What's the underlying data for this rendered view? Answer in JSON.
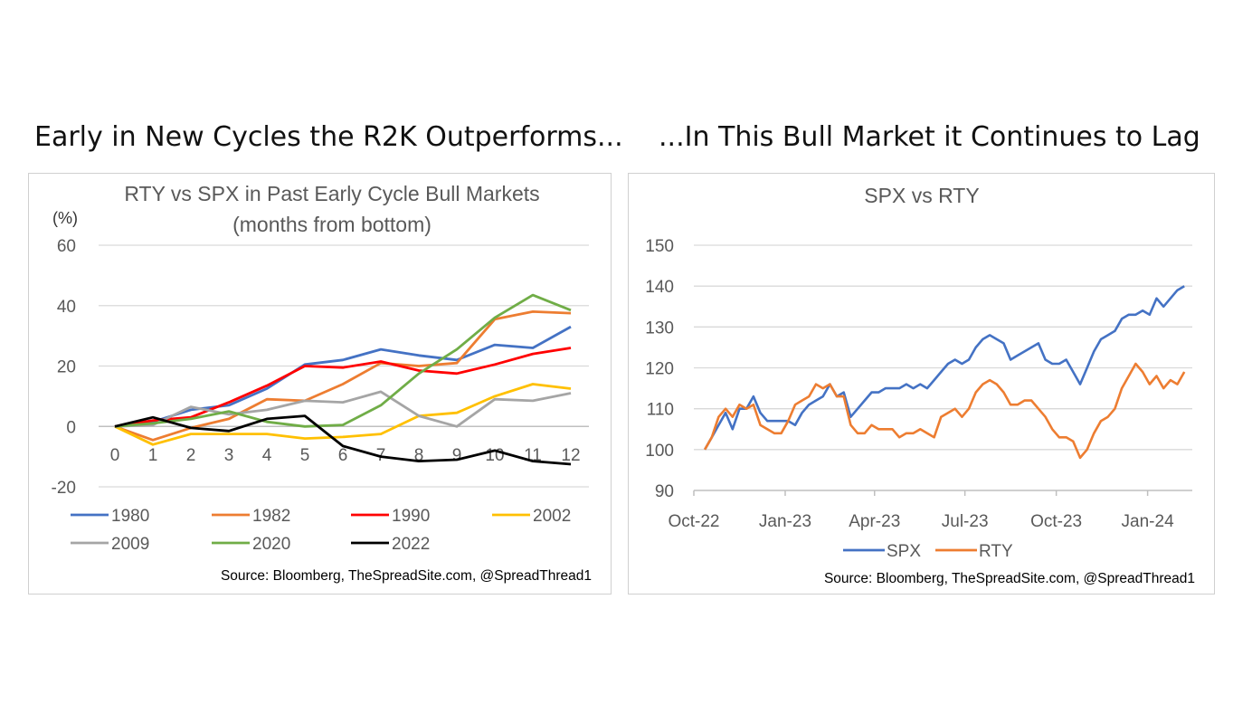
{
  "headings": {
    "left": "Early in New Cycles the R2K Outperforms...",
    "right": "...In This Bull Market it Continues to Lag"
  },
  "chart_data": [
    {
      "type": "line",
      "title": "RTY vs SPX in Past Early Cycle Bull Markets",
      "subtitle": "(months from bottom)",
      "ylabel": "(%)",
      "xlabel": "",
      "x": [
        0,
        1,
        2,
        3,
        4,
        5,
        6,
        7,
        8,
        9,
        10,
        11,
        12
      ],
      "ylim": [
        -20,
        60
      ],
      "yticks": [
        -20,
        0,
        20,
        40,
        60
      ],
      "grid": true,
      "legend_position": "bottom",
      "source": "Source: Bloomberg, TheSpreadSite.com, @SpreadThread1",
      "series": [
        {
          "name": "1980",
          "color": "#4472C4",
          "values": [
            0,
            1.5,
            5.5,
            7,
            12.5,
            20.5,
            22,
            25.5,
            23.5,
            22,
            27,
            26,
            33
          ]
        },
        {
          "name": "1982",
          "color": "#ED7D31",
          "values": [
            0,
            -4.5,
            -0.5,
            2.5,
            9,
            8.5,
            14,
            21,
            20,
            21,
            35.5,
            38,
            37.5
          ]
        },
        {
          "name": "1990",
          "color": "#FF0000",
          "values": [
            0,
            2,
            3,
            8,
            13.5,
            20,
            19.5,
            21.5,
            18.5,
            17.5,
            20.5,
            24,
            26
          ]
        },
        {
          "name": "2002",
          "color": "#FFC000",
          "values": [
            0,
            -6,
            -2.5,
            -2.5,
            -2.5,
            -4,
            -3.5,
            -2.5,
            3.5,
            4.5,
            10,
            14,
            12.5
          ]
        },
        {
          "name": "2009",
          "color": "#A5A5A5",
          "values": [
            0,
            0.5,
            6.5,
            4,
            5.5,
            8.5,
            8,
            11.5,
            3.5,
            0,
            9,
            8.5,
            11
          ]
        },
        {
          "name": "2020",
          "color": "#70AD47",
          "values": [
            0,
            1,
            2.5,
            5,
            1.5,
            0,
            0.5,
            7,
            17.5,
            25.5,
            36,
            43.5,
            38.5
          ]
        },
        {
          "name": "2022",
          "color": "#000000",
          "values": [
            0,
            3,
            -0.5,
            -1.5,
            2.5,
            3.5,
            -6.5,
            -10,
            -11.5,
            -11,
            -8,
            -11.5,
            -12.5
          ]
        }
      ]
    },
    {
      "type": "line",
      "title": "SPX vs RTY",
      "xlabel": "",
      "ylabel": "",
      "ylim": [
        90,
        150
      ],
      "yticks": [
        90,
        100,
        110,
        120,
        130,
        140,
        150
      ],
      "xlim": [
        "2022-10-12",
        "2024-02-09"
      ],
      "xticks": [
        "Oct-22",
        "Jan-23",
        "Apr-23",
        "Jul-23",
        "Oct-23",
        "Jan-24"
      ],
      "xtick_dates": [
        "2022-10-01",
        "2023-01-01",
        "2023-04-01",
        "2023-07-01",
        "2023-10-01",
        "2024-01-01"
      ],
      "grid": true,
      "legend_position": "bottom",
      "source": "Source: Bloomberg, TheSpreadSite.com, @SpreadThread1",
      "series": [
        {
          "name": "SPX",
          "color": "#4472C4",
          "x": [
            "2022-10-12",
            "2022-10-19",
            "2022-10-26",
            "2022-11-02",
            "2022-11-09",
            "2022-11-16",
            "2022-11-23",
            "2022-11-30",
            "2022-12-07",
            "2022-12-14",
            "2022-12-21",
            "2022-12-28",
            "2023-01-04",
            "2023-01-11",
            "2023-01-18",
            "2023-01-25",
            "2023-02-01",
            "2023-02-08",
            "2023-02-15",
            "2023-02-22",
            "2023-03-01",
            "2023-03-08",
            "2023-03-15",
            "2023-03-22",
            "2023-03-29",
            "2023-04-05",
            "2023-04-12",
            "2023-04-19",
            "2023-04-26",
            "2023-05-03",
            "2023-05-10",
            "2023-05-17",
            "2023-05-24",
            "2023-05-31",
            "2023-06-07",
            "2023-06-14",
            "2023-06-21",
            "2023-06-28",
            "2023-07-05",
            "2023-07-12",
            "2023-07-19",
            "2023-07-26",
            "2023-08-02",
            "2023-08-09",
            "2023-08-16",
            "2023-08-23",
            "2023-08-30",
            "2023-09-06",
            "2023-09-13",
            "2023-09-20",
            "2023-09-27",
            "2023-10-04",
            "2023-10-11",
            "2023-10-18",
            "2023-10-25",
            "2023-11-01",
            "2023-11-08",
            "2023-11-15",
            "2023-11-22",
            "2023-11-29",
            "2023-12-06",
            "2023-12-13",
            "2023-12-20",
            "2023-12-27",
            "2024-01-03",
            "2024-01-10",
            "2024-01-17",
            "2024-01-24",
            "2024-01-31",
            "2024-02-07"
          ],
          "values": [
            100,
            103,
            106,
            109,
            105,
            110,
            110,
            113,
            109,
            107,
            107,
            107,
            107,
            106,
            109,
            111,
            112,
            113,
            116,
            113,
            114,
            108,
            110,
            112,
            114,
            114,
            115,
            115,
            115,
            116,
            115,
            116,
            115,
            117,
            119,
            121,
            122,
            121,
            122,
            125,
            127,
            128,
            127,
            126,
            122,
            123,
            124,
            125,
            126,
            122,
            121,
            121,
            122,
            119,
            116,
            120,
            124,
            127,
            128,
            129,
            132,
            133,
            133,
            134,
            133,
            137,
            135,
            137,
            139,
            140
          ]
        },
        {
          "name": "RTY",
          "color": "#ED7D31",
          "x": [
            "2022-10-12",
            "2022-10-19",
            "2022-10-26",
            "2022-11-02",
            "2022-11-09",
            "2022-11-16",
            "2022-11-23",
            "2022-11-30",
            "2022-12-07",
            "2022-12-14",
            "2022-12-21",
            "2022-12-28",
            "2023-01-04",
            "2023-01-11",
            "2023-01-18",
            "2023-01-25",
            "2023-02-01",
            "2023-02-08",
            "2023-02-15",
            "2023-02-22",
            "2023-03-01",
            "2023-03-08",
            "2023-03-15",
            "2023-03-22",
            "2023-03-29",
            "2023-04-05",
            "2023-04-12",
            "2023-04-19",
            "2023-04-26",
            "2023-05-03",
            "2023-05-10",
            "2023-05-17",
            "2023-05-24",
            "2023-05-31",
            "2023-06-07",
            "2023-06-14",
            "2023-06-21",
            "2023-06-28",
            "2023-07-05",
            "2023-07-12",
            "2023-07-19",
            "2023-07-26",
            "2023-08-02",
            "2023-08-09",
            "2023-08-16",
            "2023-08-23",
            "2023-08-30",
            "2023-09-06",
            "2023-09-13",
            "2023-09-20",
            "2023-09-27",
            "2023-10-04",
            "2023-10-11",
            "2023-10-18",
            "2023-10-25",
            "2023-11-01",
            "2023-11-08",
            "2023-11-15",
            "2023-11-22",
            "2023-11-29",
            "2023-12-06",
            "2023-12-13",
            "2023-12-20",
            "2023-12-27",
            "2024-01-03",
            "2024-01-10",
            "2024-01-17",
            "2024-01-24",
            "2024-01-31",
            "2024-02-07"
          ],
          "values": [
            100,
            103,
            108,
            110,
            108,
            111,
            110,
            111,
            106,
            105,
            104,
            104,
            107,
            111,
            112,
            113,
            116,
            115,
            116,
            113,
            113,
            106,
            104,
            104,
            106,
            105,
            105,
            105,
            103,
            104,
            104,
            105,
            104,
            103,
            108,
            109,
            110,
            108,
            110,
            114,
            116,
            117,
            116,
            114,
            111,
            111,
            112,
            112,
            110,
            108,
            105,
            103,
            103,
            102,
            98,
            100,
            104,
            107,
            108,
            110,
            115,
            118,
            121,
            119,
            116,
            118,
            115,
            117,
            116,
            119
          ]
        }
      ]
    }
  ]
}
